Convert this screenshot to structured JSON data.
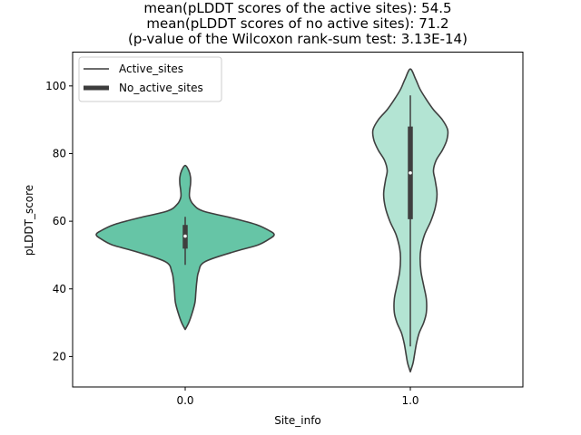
{
  "chart_data": {
    "type": "violin",
    "title_lines": [
      "mean(pLDDT scores of the active sites): 54.5",
      "mean(pLDDT scores of no active sites): 71.2",
      "(p-value of the Wilcoxon rank-sum test: 3.13E-14)"
    ],
    "xlabel": "Site_info",
    "ylabel": "pLDDT_score",
    "ylim": [
      11,
      110
    ],
    "yticks": [
      20,
      40,
      60,
      80,
      100
    ],
    "categories": [
      "0.0",
      "1.0"
    ],
    "grid": false,
    "legend": {
      "placement": "top-left",
      "entries": [
        "Active_sites",
        "No_active_sites"
      ]
    },
    "violins": [
      {
        "category": "0.0",
        "color": "#66c5a6",
        "median": 55.6,
        "q1": 51.9,
        "q3": 58.9,
        "whisker_low": 47.1,
        "whisker_high": 61.3,
        "density_profile": [
          [
            28,
            0.0
          ],
          [
            30,
            0.04
          ],
          [
            33,
            0.08
          ],
          [
            36,
            0.11
          ],
          [
            39,
            0.12
          ],
          [
            42,
            0.13
          ],
          [
            45,
            0.15
          ],
          [
            48,
            0.22
          ],
          [
            51,
            0.55
          ],
          [
            53,
            0.82
          ],
          [
            55,
            0.96
          ],
          [
            56,
            1.0
          ],
          [
            57,
            0.96
          ],
          [
            59,
            0.8
          ],
          [
            61,
            0.52
          ],
          [
            63,
            0.2
          ],
          [
            65,
            0.09
          ],
          [
            67,
            0.05
          ],
          [
            69,
            0.05
          ],
          [
            71,
            0.06
          ],
          [
            73,
            0.06
          ],
          [
            75,
            0.04
          ],
          [
            76.5,
            0.0
          ]
        ]
      },
      {
        "category": "1.0",
        "color": "#b3e4d3",
        "median": 74.3,
        "q1": 60.6,
        "q3": 88.0,
        "whisker_low": 23.0,
        "whisker_high": 97.2,
        "density_profile": [
          [
            15.5,
            0.0
          ],
          [
            18,
            0.03
          ],
          [
            21,
            0.05
          ],
          [
            24,
            0.07
          ],
          [
            27,
            0.1
          ],
          [
            30,
            0.15
          ],
          [
            33,
            0.18
          ],
          [
            37,
            0.18
          ],
          [
            41,
            0.15
          ],
          [
            45,
            0.12
          ],
          [
            49,
            0.11
          ],
          [
            52,
            0.12
          ],
          [
            56,
            0.16
          ],
          [
            60,
            0.23
          ],
          [
            64,
            0.28
          ],
          [
            68,
            0.3
          ],
          [
            72,
            0.28
          ],
          [
            75,
            0.26
          ],
          [
            78,
            0.29
          ],
          [
            81,
            0.36
          ],
          [
            84,
            0.41
          ],
          [
            87,
            0.42
          ],
          [
            90,
            0.36
          ],
          [
            93,
            0.26
          ],
          [
            96,
            0.18
          ],
          [
            99,
            0.11
          ],
          [
            102,
            0.06
          ],
          [
            105,
            0.0
          ]
        ]
      }
    ]
  }
}
